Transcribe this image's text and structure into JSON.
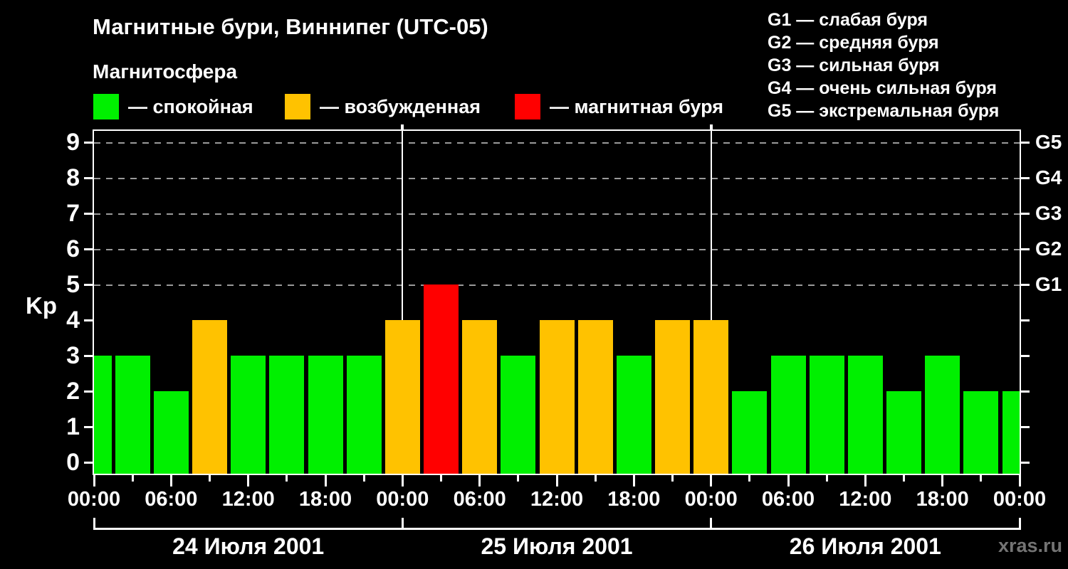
{
  "header": {
    "title": "Магнитные бури, Виннипег (UTC-05)",
    "subtitle": "Магнитосфера",
    "legend": [
      {
        "name": "quiet",
        "label": "— спокойная",
        "color": "#00f000"
      },
      {
        "name": "excited",
        "label": "— возбужденная",
        "color": "#ffc200"
      },
      {
        "name": "storm",
        "label": "— магнитная буря",
        "color": "#ff0000"
      }
    ],
    "g_scale_legend": [
      "G1 — слабая буря",
      "G2 — средняя буря",
      "G3 — сильная буря",
      "G4 — очень сильная буря",
      "G5 — экстремальная буря"
    ]
  },
  "watermark": "xras.ru",
  "chart_data": {
    "type": "bar",
    "title": "Магнитные бури, Виннипег (UTC-05)",
    "ylabel": "Kp",
    "ylim": [
      0,
      9
    ],
    "y_ticks": [
      0,
      1,
      2,
      3,
      4,
      5,
      6,
      7,
      8,
      9
    ],
    "grid_levels": [
      5,
      6,
      7,
      8,
      9
    ],
    "right_axis_labels": [
      {
        "kp": 5,
        "label": "G1"
      },
      {
        "kp": 6,
        "label": "G2"
      },
      {
        "kp": 7,
        "label": "G3"
      },
      {
        "kp": 8,
        "label": "G4"
      },
      {
        "kp": 9,
        "label": "G5"
      }
    ],
    "interval_hours": 3,
    "x_tick_labels": [
      "00:00",
      "06:00",
      "12:00",
      "18:00",
      "00:00",
      "06:00",
      "12:00",
      "18:00",
      "00:00",
      "06:00",
      "12:00",
      "18:00",
      "00:00"
    ],
    "days": [
      "24 Июля 2001",
      "25 Июля 2001",
      "26 Июля 2001"
    ],
    "series": [
      {
        "name": "Kp",
        "values": [
          3,
          3,
          2,
          4,
          3,
          3,
          3,
          3,
          4,
          5,
          4,
          3,
          4,
          4,
          3,
          4,
          4,
          2,
          3,
          3,
          3,
          2,
          3,
          2,
          2
        ]
      }
    ],
    "color_rules": {
      "quiet_kp_max": 3,
      "excited_kp_max": 4
    },
    "legend_position": "top",
    "grid": "dashed horizontal at G-levels only"
  }
}
